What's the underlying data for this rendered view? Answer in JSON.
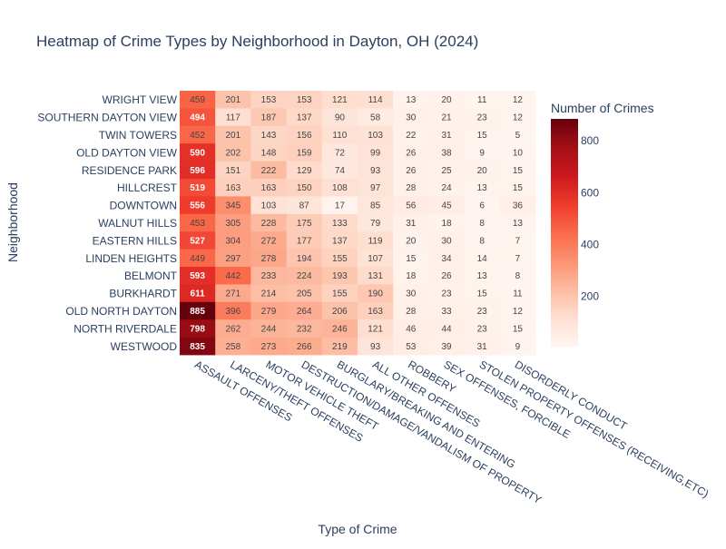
{
  "chart_data": {
    "type": "heatmap",
    "title": "Heatmap of Crime Types by Neighborhood in Dayton, OH (2024)",
    "xlabel": "Type of Crime",
    "ylabel": "Neighborhood",
    "x": [
      "ASSAULT OFFENSES",
      "LARCENY/THEFT OFFENSES",
      "MOTOR VEHICLE THEFT",
      "DESTRUCTION/DAMAGE/VANDALISM OF PROPERTY",
      "BURGLARY/BREAKING AND ENTERING",
      "ALL OTHER OFFENSES",
      "ROBBERY",
      "SEX OFFENSES, FORCIBLE",
      "STOLEN PROPERTY OFFENSES (RECEIVING,ETC)",
      "DISORDERLY CONDUCT"
    ],
    "y": [
      "WRIGHT VIEW",
      "SOUTHERN DAYTON VIEW",
      "TWIN TOWERS",
      "OLD DAYTON VIEW",
      "RESIDENCE PARK",
      "HILLCREST",
      "DOWNTOWN",
      "WALNUT HILLS",
      "EASTERN HILLS",
      "LINDEN HEIGHTS",
      "BELMONT",
      "BURKHARDT",
      "OLD NORTH DAYTON",
      "NORTH RIVERDALE",
      "WESTWOOD"
    ],
    "z": [
      [
        459,
        201,
        153,
        153,
        121,
        114,
        13,
        20,
        11,
        12
      ],
      [
        494,
        117,
        187,
        137,
        90,
        58,
        30,
        21,
        23,
        12
      ],
      [
        452,
        201,
        143,
        156,
        110,
        103,
        22,
        31,
        15,
        5
      ],
      [
        590,
        202,
        148,
        159,
        72,
        99,
        26,
        38,
        9,
        10
      ],
      [
        596,
        151,
        222,
        129,
        74,
        93,
        26,
        25,
        20,
        15
      ],
      [
        519,
        163,
        163,
        150,
        108,
        97,
        28,
        24,
        13,
        15
      ],
      [
        556,
        345,
        103,
        87,
        17,
        85,
        56,
        45,
        6,
        36
      ],
      [
        453,
        305,
        228,
        175,
        133,
        79,
        31,
        18,
        8,
        13
      ],
      [
        527,
        304,
        272,
        177,
        137,
        119,
        20,
        30,
        8,
        7
      ],
      [
        449,
        297,
        278,
        194,
        155,
        107,
        15,
        34,
        14,
        7
      ],
      [
        593,
        442,
        233,
        224,
        193,
        131,
        18,
        26,
        13,
        8
      ],
      [
        611,
        271,
        214,
        205,
        155,
        190,
        30,
        23,
        15,
        11
      ],
      [
        885,
        396,
        279,
        264,
        206,
        163,
        28,
        33,
        23,
        12
      ],
      [
        798,
        262,
        244,
        232,
        246,
        121,
        46,
        44,
        23,
        15
      ],
      [
        835,
        258,
        273,
        266,
        219,
        93,
        53,
        39,
        31,
        9
      ]
    ],
    "zmin": 5,
    "zmax": 885,
    "colorscale": "Reds",
    "colorbar": {
      "title": "Number of Crimes",
      "ticks": [
        200,
        400,
        600,
        800
      ]
    },
    "colors": {
      "low": "#fff5f0",
      "high": "#67000d",
      "text": "#2a3f5f",
      "label_dark": "#444444",
      "label_light": "#ffffff"
    }
  }
}
